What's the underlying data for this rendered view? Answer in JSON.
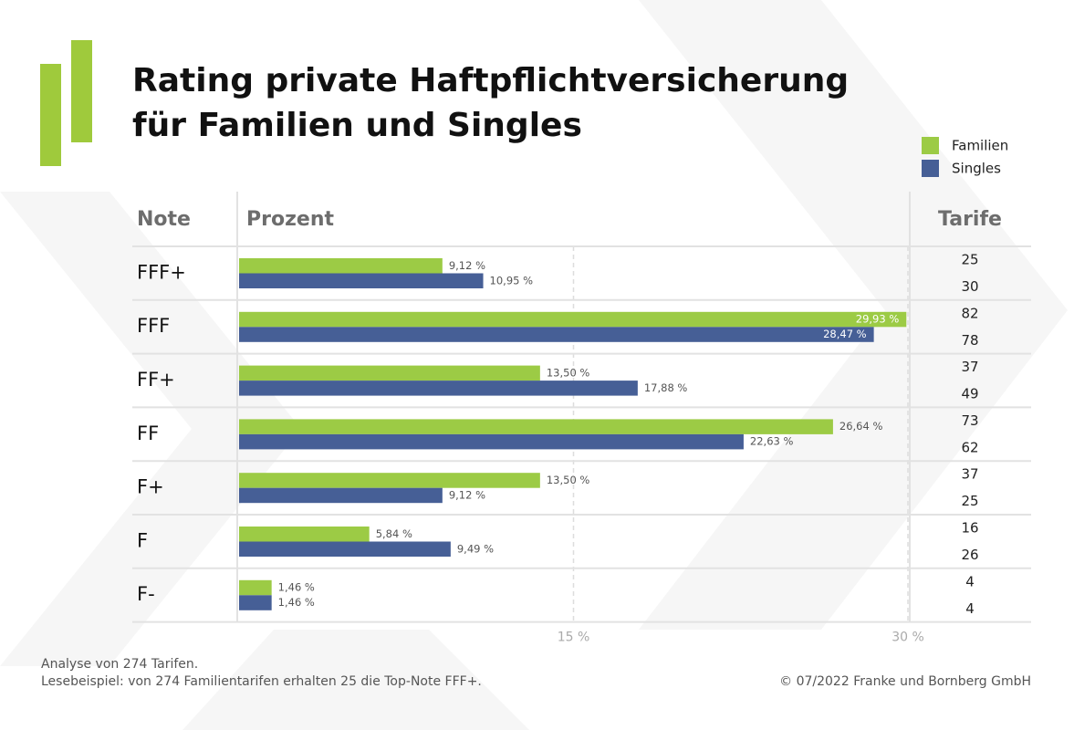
{
  "chart_data": {
    "type": "bar",
    "orientation": "horizontal",
    "title": [
      "Rating private Haftpflichtversicherung",
      "für Familien und Singles"
    ],
    "headers": [
      "Note",
      "Prozent",
      "Tarife"
    ],
    "categories": [
      "FFF+",
      "FFF",
      "FF+",
      "FF",
      "F+",
      "F",
      "F-"
    ],
    "series": [
      {
        "name": "Familien",
        "color": "#9ccb45",
        "values": [
          9.12,
          29.93,
          13.5,
          26.64,
          13.5,
          5.84,
          1.46
        ],
        "value_labels": [
          "9,12 %",
          "29,93 %",
          "13,50 %",
          "26,64 %",
          "13,50 %",
          "5,84 %",
          "1,46 %"
        ],
        "tarife": [
          25,
          82,
          37,
          73,
          37,
          16,
          4
        ]
      },
      {
        "name": "Singles",
        "color": "#465f96",
        "values": [
          10.95,
          28.47,
          17.88,
          22.63,
          9.12,
          9.49,
          1.46
        ],
        "value_labels": [
          "10,95 %",
          "28,47 %",
          "17,88 %",
          "22,63 %",
          "9,12 %",
          "9,49 %",
          "1,46 %"
        ],
        "tarife": [
          30,
          78,
          49,
          62,
          25,
          26,
          4
        ]
      }
    ],
    "xlim": [
      0,
      30
    ],
    "xticks": [
      {
        "value": 15,
        "label": "15 %"
      },
      {
        "value": 30,
        "label": "30 %"
      }
    ],
    "grid": true,
    "legend": "top-right",
    "notes": [
      "Analyse von 274 Tarifen.",
      "Lesebeispiel: von 274 Familientarifen erhalten 25 die Top-Note FFF+."
    ],
    "source": "© 07/2022 Franke und Bornberg GmbH"
  }
}
